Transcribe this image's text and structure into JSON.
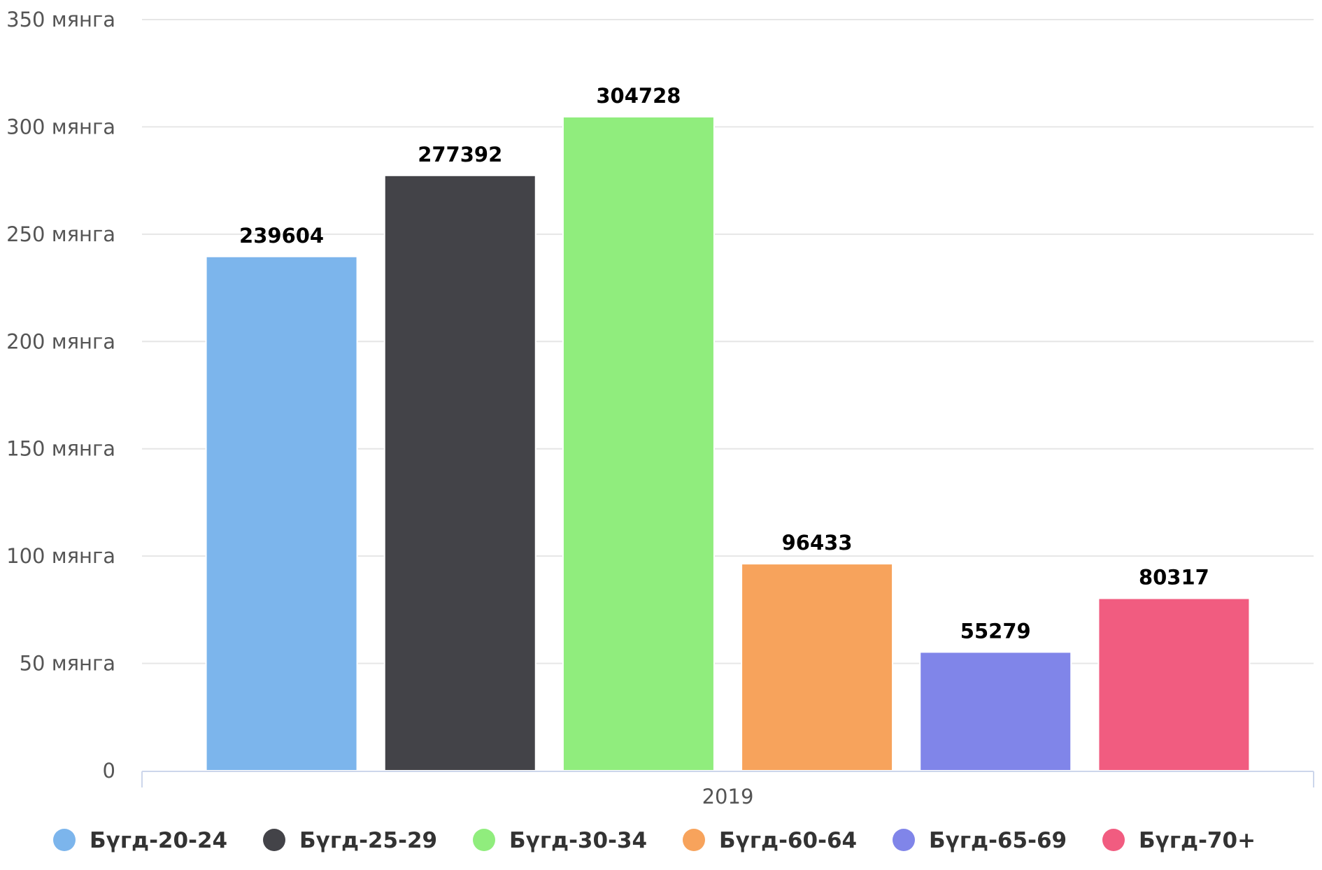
{
  "chart_data": {
    "type": "bar",
    "categories": [
      "2019"
    ],
    "series": [
      {
        "name": "Бүгд-20-24",
        "values": [
          239604
        ],
        "color": "#7cb5ec"
      },
      {
        "name": "Бүгд-25-29",
        "values": [
          277392
        ],
        "color": "#434348"
      },
      {
        "name": "Бүгд-30-34",
        "values": [
          304728
        ],
        "color": "#90ed7d"
      },
      {
        "name": "Бүгд-60-64",
        "values": [
          96433
        ],
        "color": "#f7a35c"
      },
      {
        "name": "Бүгд-65-69",
        "values": [
          55279
        ],
        "color": "#8085e9"
      },
      {
        "name": "Бүгд-70+",
        "values": [
          80317
        ],
        "color": "#f15c80"
      }
    ],
    "ylim": [
      0,
      350000
    ],
    "yticks": [
      {
        "value": 0,
        "label": "0"
      },
      {
        "value": 50000,
        "label": "50 мянга"
      },
      {
        "value": 100000,
        "label": "100 мянга"
      },
      {
        "value": 150000,
        "label": "150 мянга"
      },
      {
        "value": 200000,
        "label": "200 мянга"
      },
      {
        "value": 250000,
        "label": "250 мянга"
      },
      {
        "value": 300000,
        "label": "300 мянга"
      },
      {
        "value": 350000,
        "label": "350 мянга"
      }
    ],
    "grid": true,
    "data_labels": true,
    "legend_position": "bottom"
  }
}
